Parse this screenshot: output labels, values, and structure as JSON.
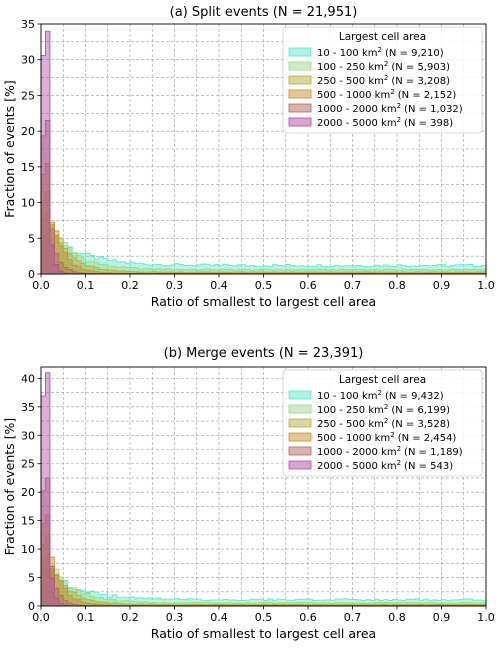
{
  "legend_title": "Largest cell area",
  "colors": [
    "#5fe6c8",
    "#9bd88a",
    "#b7ae3c",
    "#c88f2e",
    "#b06a5c",
    "#b24ca6"
  ],
  "chart_data": [
    {
      "type": "histogram",
      "title": "(a) Split events (N = 21,951)",
      "xlabel": "Ratio of smallest to largest cell area",
      "ylabel": "Fraction of events [%]",
      "xlim": [
        0,
        1
      ],
      "ylim": [
        0,
        35
      ],
      "xticks": [
        "0.0",
        "0.1",
        "0.2",
        "0.3",
        "0.4",
        "0.5",
        "0.6",
        "0.7",
        "0.8",
        "0.9",
        "1.0"
      ],
      "yticks": [
        "0",
        "5",
        "10",
        "15",
        "20",
        "25",
        "30",
        "35"
      ],
      "grid": true,
      "legend_position": "upper-right",
      "bin_width": 0.01,
      "series": [
        {
          "range": "10 - 100 km",
          "count": "(N = 9,210)",
          "peak": 5.8,
          "tau": 0.07,
          "floor": 1.2
        },
        {
          "range": "100 - 250 km",
          "count": "(N = 5,903)",
          "peak": 8.5,
          "tau": 0.055,
          "floor": 0.6
        },
        {
          "range": "250 - 500 km",
          "count": "(N = 3,208)",
          "peak": 11.5,
          "tau": 0.04,
          "floor": 0.25
        },
        {
          "range": "500 - 1000 km",
          "count": "(N = 2,152)",
          "peak": 15.5,
          "tau": 0.028,
          "floor": 0.1
        },
        {
          "range": "1000 - 2000 km",
          "count": "(N = 1,032)",
          "peak": 21.5,
          "tau": 0.016,
          "floor": 0.05
        },
        {
          "range": "2000 - 5000 km",
          "count": "(N = 398)",
          "peak": 34.0,
          "tau": 0.009,
          "floor": 0.02
        }
      ]
    },
    {
      "type": "histogram",
      "title": "(b) Merge events (N = 23,391)",
      "xlabel": "Ratio of smallest to largest cell area",
      "ylabel": "Fraction of events [%]",
      "xlim": [
        0,
        1
      ],
      "ylim": [
        0,
        42
      ],
      "xticks": [
        "0.0",
        "0.1",
        "0.2",
        "0.3",
        "0.4",
        "0.5",
        "0.6",
        "0.7",
        "0.8",
        "0.9",
        "1.0"
      ],
      "yticks": [
        "0",
        "5",
        "10",
        "15",
        "20",
        "25",
        "30",
        "35",
        "40"
      ],
      "grid": true,
      "legend_position": "upper-right",
      "bin_width": 0.01,
      "series": [
        {
          "range": "10 - 100 km",
          "count": "(N = 9,432)",
          "peak": 6.0,
          "tau": 0.07,
          "floor": 1.1
        },
        {
          "range": "100 - 250 km",
          "count": "(N = 6,199)",
          "peak": 9.0,
          "tau": 0.055,
          "floor": 0.55
        },
        {
          "range": "250 - 500 km",
          "count": "(N = 3,528)",
          "peak": 12.0,
          "tau": 0.04,
          "floor": 0.25
        },
        {
          "range": "500 - 1000 km",
          "count": "(N = 2,454)",
          "peak": 16.0,
          "tau": 0.028,
          "floor": 0.1
        },
        {
          "range": "1000 - 2000 km",
          "count": "(N = 1,189)",
          "peak": 22.5,
          "tau": 0.016,
          "floor": 0.05
        },
        {
          "range": "2000 - 5000 km",
          "count": "(N = 543)",
          "peak": 41.0,
          "tau": 0.009,
          "floor": 0.02
        }
      ]
    }
  ]
}
